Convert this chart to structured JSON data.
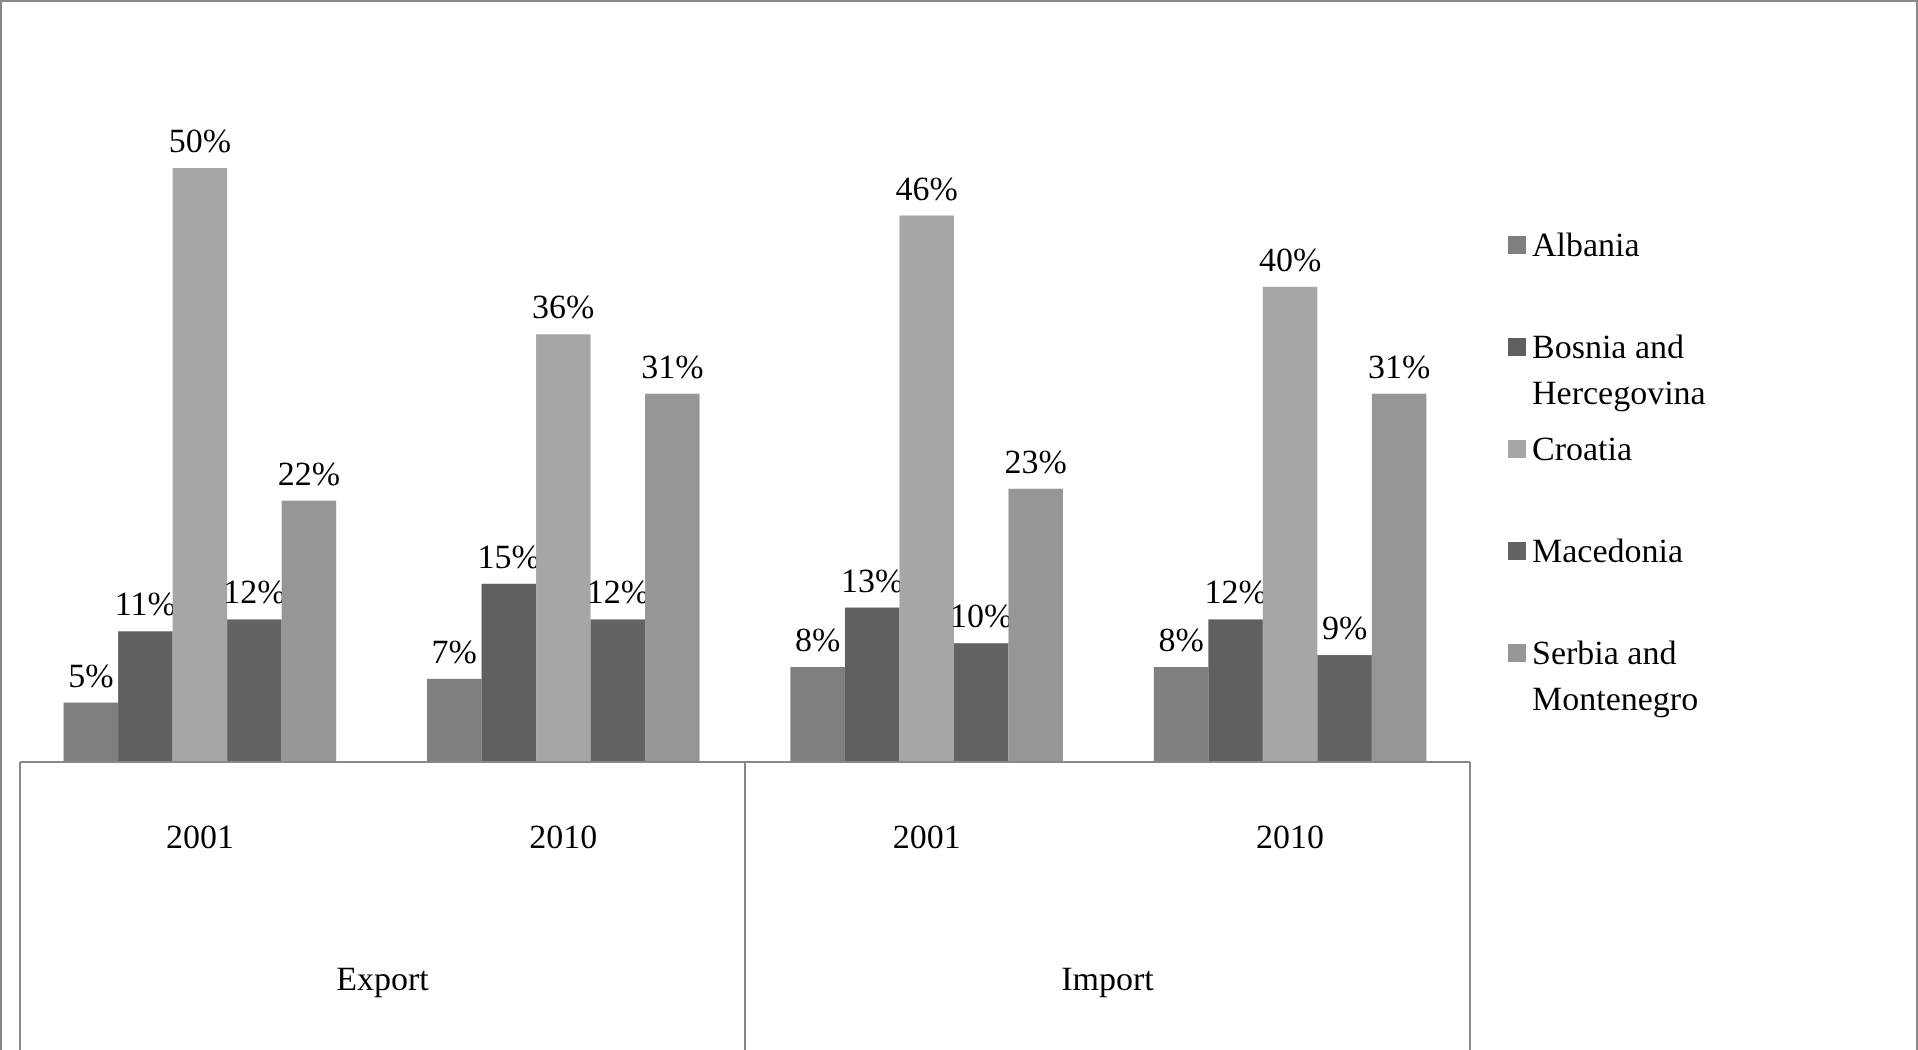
{
  "chart_data": {
    "type": "bar",
    "categories": [
      "2001",
      "2010",
      "2001",
      "2010"
    ],
    "annotations": [
      "Export",
      "Import"
    ],
    "legend": "right",
    "series": [
      {
        "name": "Albania",
        "color": "#7f7f7f",
        "values": [
          5,
          7,
          8,
          8
        ],
        "value_labels": [
          "5%",
          "7%",
          "8%",
          "8%"
        ]
      },
      {
        "name": "Bosnia and Hercegovina",
        "color": "#5f5f5f",
        "values": [
          11,
          15,
          13,
          12
        ],
        "value_labels": [
          "11%",
          "15%",
          "13%",
          "12%"
        ]
      },
      {
        "name": "Croatia",
        "color": "#a6a6a6",
        "values": [
          50,
          36,
          46,
          40
        ],
        "value_labels": [
          "50%",
          "36%",
          "46%",
          "40%"
        ]
      },
      {
        "name": "Macedonia",
        "color": "#636363",
        "values": [
          12,
          12,
          10,
          9
        ],
        "value_labels": [
          "12%",
          "12%",
          "10%",
          "9%"
        ]
      },
      {
        "name": "Serbia and Montenegro",
        "color": "#969696",
        "values": [
          22,
          31,
          23,
          31
        ],
        "value_labels": [
          "22%",
          "31%",
          "23%",
          "31%"
        ]
      }
    ]
  }
}
